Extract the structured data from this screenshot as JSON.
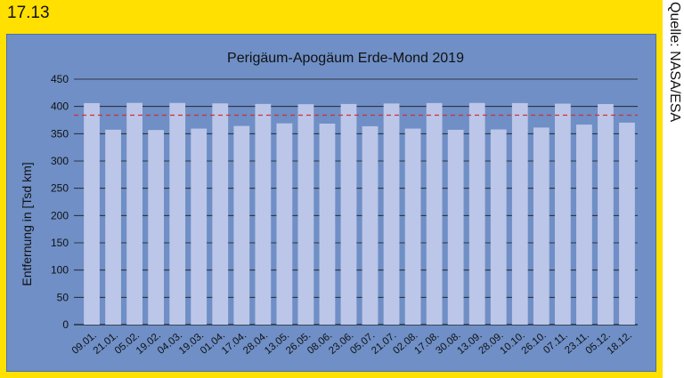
{
  "figure_number": "17.13",
  "source_note": "Quelle: NASA/ESA",
  "colors": {
    "frame": "#ffe000",
    "panel": "#6f8fc6",
    "bar": "#bcc6e8",
    "reference_line": "#d03030",
    "grid": "#1a1a1a"
  },
  "chart_data": {
    "type": "bar",
    "title": "Perigäum-Apogäum Erde-Mond 2019",
    "xlabel": "",
    "ylabel": "Entfernung in [Tsd km]",
    "ylim": [
      0,
      450
    ],
    "yticks": [
      0,
      50,
      100,
      150,
      200,
      250,
      300,
      350,
      400,
      450
    ],
    "grid": true,
    "reference_line": 384,
    "categories": [
      "09.01.",
      "21.01.",
      "05.02.",
      "19.02.",
      "04.03.",
      "19.03.",
      "01.04.",
      "17.04.",
      "28.04.",
      "13.05.",
      "26.05.",
      "08.06.",
      "23.06.",
      "05.07.",
      "21.07.",
      "02.08.",
      "17.08.",
      "30.08.",
      "13.09.",
      "28.09.",
      "10.10.",
      "26.10.",
      "07.11.",
      "23.11.",
      "05.12.",
      "18.12."
    ],
    "values": [
      406.1,
      357.3,
      406.5,
      356.8,
      406.4,
      359.4,
      405.6,
      364.2,
      404.6,
      369.0,
      404.1,
      368.5,
      404.5,
      363.7,
      405.4,
      359.4,
      406.2,
      357.2,
      406.4,
      357.8,
      406.1,
      361.3,
      405.1,
      366.7,
      404.4,
      370.3
    ]
  }
}
